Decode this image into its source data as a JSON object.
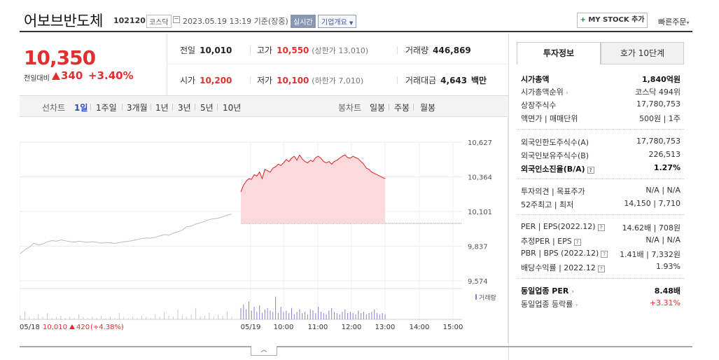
{
  "header": {
    "company_name": "어보브반도체",
    "code": "102120",
    "market": "코스닥",
    "datetime": "2023.05.19 13:19  기준(장중)",
    "realtime": "실시간",
    "company_overview": "기업개요",
    "mystock_label": "MY STOCK 추가",
    "quick_order": "빠른주문"
  },
  "price": {
    "current": "10,350",
    "prev_day_label": "전일대비",
    "change": "340",
    "change_pct": "+3.40%"
  },
  "stats": {
    "prev_close_label": "전일",
    "prev_close": "10,010",
    "high_label": "고가",
    "high": "10,550",
    "upper_limit": "(상한가 13,010)",
    "volume_label": "거래량",
    "volume": "446,869",
    "open_label": "시가",
    "open": "10,200",
    "low_label": "저가",
    "low": "10,100",
    "lower_limit": "(하한가 7,010)",
    "amount_label": "거래대금",
    "amount": "4,643",
    "amount_unit": "백만"
  },
  "period_bar": {
    "line_chart_label": "선차트",
    "periods": [
      "1일",
      "1주일",
      "3개월",
      "1년",
      "3년",
      "5년",
      "10년"
    ],
    "active_period": "1일",
    "candle_label": "봉차트",
    "candles": [
      "일봉",
      "주봉",
      "월봉"
    ]
  },
  "chart_data": {
    "type": "line",
    "y_ticks": [
      "10,627",
      "10,364",
      "10,101",
      "9,837",
      "9,574"
    ],
    "ylim": [
      9574,
      10627
    ],
    "x_ticks": [
      "05/19",
      "10:00",
      "11:00",
      "12:00",
      "13:00",
      "14:00",
      "15:00"
    ],
    "volume_label": "거래량",
    "footer_date": "05/18",
    "footer_price": "10,010",
    "footer_change": "420",
    "footer_pct": "(+4.38%)",
    "colors": {
      "prev_line": "#bbbbbb",
      "today_line": "#e02020",
      "today_fill": "#fbd9dc",
      "volume_prev": "#c8c8c8",
      "volume_today": "#8a7fc4"
    },
    "prev_day_series": {
      "name": "05/18",
      "values": [
        9780,
        9810,
        9830,
        9860,
        9845,
        9855,
        9870,
        9880,
        9875,
        9885,
        9878,
        9872,
        9868,
        9875,
        9870,
        9866,
        9872,
        9868,
        9860,
        9866,
        9862,
        9858,
        9865,
        9870,
        9875,
        9880,
        9888,
        9895,
        9900,
        9898,
        9905,
        9915,
        9925,
        9920,
        9935,
        9945,
        9960,
        9985,
        9990,
        10005,
        10015,
        10025,
        10040,
        10045,
        10050,
        10060,
        10075,
        10080
      ]
    },
    "today_series": {
      "name": "05/19",
      "values": [
        10250,
        10300,
        10330,
        10350,
        10345,
        10380,
        10370,
        10400,
        10350,
        10420,
        10410,
        10400,
        10430,
        10440,
        10460,
        10450,
        10470,
        10495,
        10480,
        10505,
        10520,
        10490,
        10530,
        10500,
        10480,
        10470,
        10490,
        10480,
        10510,
        10520,
        10505,
        10480,
        10470,
        10480,
        10460,
        10480,
        10490,
        10505,
        10520,
        10530,
        10510,
        10505,
        10520,
        10510,
        10500,
        10480,
        10460,
        10430,
        10420,
        10400,
        10390,
        10380,
        10370,
        10360,
        10350
      ],
      "baseline": 10010
    },
    "volume_prev": [
      3,
      6,
      2,
      1,
      4,
      2,
      5,
      1,
      2,
      3,
      1,
      2,
      1,
      4,
      2,
      1,
      2,
      1,
      3,
      1,
      2,
      1,
      5,
      2,
      1,
      2,
      1,
      3,
      2,
      1,
      4,
      2,
      6,
      3,
      2,
      8,
      3,
      2,
      4,
      9,
      2,
      3,
      5,
      2,
      4,
      3,
      6,
      2
    ],
    "volume_today": [
      9,
      12,
      8,
      14,
      7,
      10,
      6,
      11,
      5,
      8,
      9,
      7,
      6,
      18,
      5,
      10,
      6,
      7,
      5,
      9,
      4,
      6,
      8,
      5,
      6,
      4,
      8,
      7,
      5,
      10,
      6,
      5,
      4,
      7,
      9,
      6,
      5,
      4,
      6,
      8,
      5,
      6,
      5,
      4,
      7,
      5,
      6,
      4,
      5,
      6,
      8,
      5,
      4,
      5,
      4
    ]
  },
  "right_panel": {
    "tab_invest": "투자정보",
    "tab_orderbook": "호가 10단계",
    "market_cap_label": "시가총액",
    "market_cap": "1,840억원",
    "market_cap_rank_label": "시가총액순위",
    "market_cap_rank": "코스닥 494위",
    "shares_label": "상장주식수",
    "shares": "17,780,753",
    "face_label": "액면가 | 매매단위",
    "face": "500원 | 1주",
    "foreign_limit_label": "외국인한도주식수(A)",
    "foreign_limit": "17,780,753",
    "foreign_hold_label": "외국인보유주식수(B)",
    "foreign_hold": "226,513",
    "foreign_ratio_label": "외국인소진율(B/A)",
    "foreign_ratio": "1.27%",
    "opinion_label": "투자의견 | 목표주가",
    "opinion": "N/A | N/A",
    "week52_label": "52주최고 | 최저",
    "week52": "14,150 | 7,710",
    "per_label": "PER | EPS(2022.12)",
    "per": "14.62배 | 708원",
    "est_per_label": "추정PER | EPS",
    "est_per": "N/A | N/A",
    "pbr_label": "PBR | BPS (2022.12)",
    "pbr": "1.41배 | 7,332원",
    "dividend_label": "배당수익률 | 2022.12",
    "dividend": "1.93%",
    "sector_per_label": "동일업종 PER",
    "sector_per": "8.48배",
    "sector_change_label": "동일업종 등락률",
    "sector_change": "+3.31%"
  }
}
